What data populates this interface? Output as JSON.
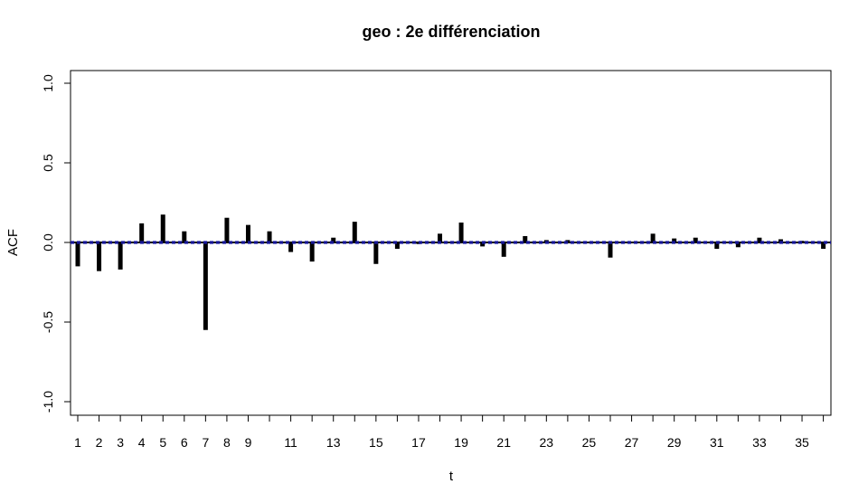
{
  "chart_data": {
    "type": "bar",
    "title": "geo : 2e différenciation",
    "xlabel": "t",
    "ylabel": "ACF",
    "ylim": [
      -1.0,
      1.0
    ],
    "xlim": [
      1,
      36
    ],
    "y_ticks": [
      "-1.0",
      "-0.5",
      "0.0",
      "0.5",
      "1.0"
    ],
    "x_tick_labels": [
      "1",
      "2",
      "3",
      "4",
      "5",
      "6",
      "7",
      "8",
      "9",
      "11",
      "13",
      "15",
      "17",
      "19",
      "21",
      "23",
      "25",
      "27",
      "29",
      "31",
      "33",
      "35"
    ],
    "lags": [
      1,
      2,
      3,
      4,
      5,
      6,
      7,
      8,
      9,
      10,
      11,
      12,
      13,
      14,
      15,
      16,
      17,
      18,
      19,
      20,
      21,
      22,
      23,
      24,
      25,
      26,
      27,
      28,
      29,
      30,
      31,
      32,
      33,
      34,
      35,
      36
    ],
    "values": [
      -0.15,
      -0.18,
      -0.17,
      0.12,
      0.175,
      0.07,
      -0.55,
      0.155,
      0.11,
      0.07,
      -0.06,
      -0.12,
      0.03,
      0.13,
      -0.135,
      -0.04,
      -0.01,
      0.055,
      0.125,
      -0.025,
      -0.09,
      0.04,
      0.015,
      0.015,
      0.005,
      -0.095,
      0.0,
      0.055,
      0.025,
      0.03,
      -0.04,
      -0.03,
      0.03,
      0.02,
      0.01,
      -0.04
    ],
    "confidence_band": 0.005,
    "colors": {
      "bar": "#000000",
      "zero_line": "#000000",
      "band": "#1a1aa6"
    },
    "grid": false
  }
}
